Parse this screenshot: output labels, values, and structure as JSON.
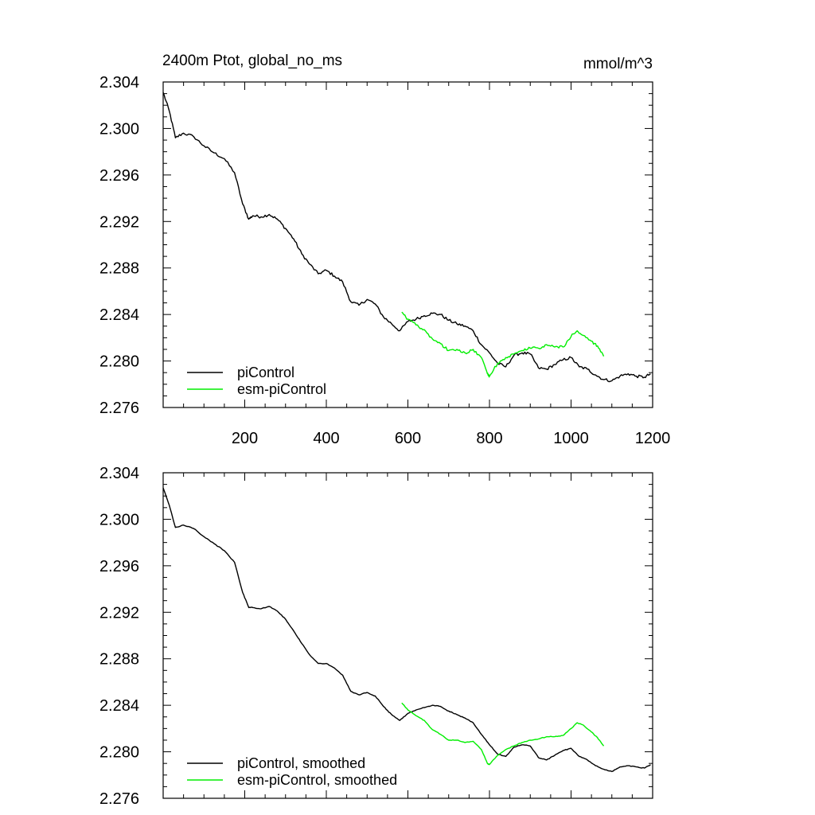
{
  "figure": {
    "title_left": "2400m Ptot, global_no_ms",
    "units": "mmol/m^3"
  },
  "colors": {
    "piControl": "#000000",
    "esm_piControl": "#00ee00"
  },
  "chart_data": [
    {
      "type": "line",
      "title": "2400m Ptot, global_no_ms",
      "units": "mmol/m^3",
      "xlabel": "",
      "ylabel": "",
      "xlim": [
        0,
        1200
      ],
      "ylim": [
        2.276,
        2.304
      ],
      "xticks": [
        200,
        400,
        600,
        800,
        1000,
        1200
      ],
      "xticklabels": [
        "200",
        "400",
        "600",
        "800",
        "1000",
        "1200"
      ],
      "yticks": [
        2.276,
        2.28,
        2.284,
        2.288,
        2.292,
        2.296,
        2.3,
        2.304
      ],
      "yticklabels": [
        "2.276",
        "2.280",
        "2.284",
        "2.288",
        "2.292",
        "2.296",
        "2.300",
        "2.304"
      ],
      "legend_position": "bottom-left",
      "series": [
        {
          "name": "piControl",
          "color": "#000000",
          "x": [
            0,
            15,
            30,
            50,
            75,
            100,
            125,
            150,
            175,
            195,
            210,
            220,
            240,
            260,
            280,
            300,
            320,
            340,
            360,
            380,
            400,
            420,
            440,
            460,
            480,
            500,
            520,
            540,
            560,
            580,
            600,
            620,
            640,
            660,
            680,
            700,
            720,
            740,
            760,
            780,
            800,
            820,
            840,
            860,
            880,
            900,
            920,
            940,
            960,
            980,
            1000,
            1020,
            1040,
            1060,
            1080,
            1100,
            1120,
            1140,
            1160,
            1180,
            1195
          ],
          "y": [
            2.3031,
            2.3015,
            2.2992,
            2.2996,
            2.2993,
            2.2985,
            2.2979,
            2.2974,
            2.2962,
            2.2935,
            2.2922,
            2.2925,
            2.2924,
            2.2926,
            2.2922,
            2.2914,
            2.2905,
            2.2892,
            2.2883,
            2.2875,
            2.2878,
            2.2873,
            2.2868,
            2.2851,
            2.2848,
            2.2853,
            2.2849,
            2.2838,
            2.2832,
            2.2826,
            2.2834,
            2.2836,
            2.2839,
            2.2841,
            2.284,
            2.2835,
            2.2832,
            2.283,
            2.2826,
            2.2814,
            2.2807,
            2.2798,
            2.2795,
            2.2805,
            2.2807,
            2.2806,
            2.2794,
            2.2793,
            2.2797,
            2.2801,
            2.2803,
            2.2795,
            2.2793,
            2.2788,
            2.2784,
            2.2783,
            2.2787,
            2.2789,
            2.2787,
            2.2786,
            2.2789
          ]
        },
        {
          "name": "esm-piControl",
          "color": "#00ee00",
          "x": [
            585,
            600,
            620,
            640,
            660,
            680,
            700,
            720,
            740,
            760,
            780,
            795,
            800,
            820,
            840,
            860,
            880,
            900,
            920,
            940,
            960,
            980,
            1000,
            1015,
            1030,
            1050,
            1065,
            1080
          ],
          "y": [
            2.2842,
            2.2836,
            2.2831,
            2.2827,
            2.2819,
            2.2815,
            2.2809,
            2.281,
            2.2807,
            2.281,
            2.2803,
            2.2789,
            2.2787,
            2.2798,
            2.2803,
            2.2806,
            2.2809,
            2.2811,
            2.2811,
            2.2814,
            2.2812,
            2.2812,
            2.2821,
            2.2826,
            2.2822,
            2.2817,
            2.2813,
            2.2804
          ]
        }
      ]
    },
    {
      "type": "line",
      "title": "",
      "xlabel": "",
      "ylabel": "",
      "xlim": [
        0,
        1200
      ],
      "ylim": [
        2.276,
        2.304
      ],
      "xticks": [
        200,
        400,
        600,
        800,
        1000,
        1200
      ],
      "xticklabels": [],
      "yticks": [
        2.276,
        2.28,
        2.284,
        2.288,
        2.292,
        2.296,
        2.3,
        2.304
      ],
      "yticklabels": [
        "2.276",
        "2.280",
        "2.284",
        "2.288",
        "2.292",
        "2.296",
        "2.300",
        "2.304"
      ],
      "legend_position": "bottom-left",
      "series": [
        {
          "name": "piControl, smoothed",
          "color": "#000000",
          "x": [
            0,
            15,
            30,
            50,
            75,
            100,
            125,
            150,
            175,
            195,
            210,
            220,
            240,
            260,
            280,
            300,
            320,
            340,
            360,
            380,
            400,
            420,
            440,
            460,
            480,
            500,
            520,
            540,
            560,
            580,
            600,
            620,
            640,
            660,
            680,
            700,
            720,
            740,
            760,
            780,
            800,
            820,
            840,
            860,
            880,
            900,
            920,
            940,
            960,
            980,
            1000,
            1020,
            1040,
            1060,
            1080,
            1100,
            1120,
            1140,
            1160,
            1180,
            1195
          ],
          "y": [
            2.3027,
            2.3012,
            2.2993,
            2.2995,
            2.2992,
            2.2985,
            2.2979,
            2.2973,
            2.2963,
            2.2937,
            2.2924,
            2.2924,
            2.2923,
            2.2925,
            2.2921,
            2.2914,
            2.2904,
            2.2893,
            2.2883,
            2.2876,
            2.2876,
            2.2872,
            2.2866,
            2.2852,
            2.2849,
            2.2851,
            2.2848,
            2.2839,
            2.2832,
            2.2827,
            2.2833,
            2.2836,
            2.2838,
            2.284,
            2.2839,
            2.2835,
            2.2832,
            2.2829,
            2.2825,
            2.2815,
            2.2806,
            2.2798,
            2.2796,
            2.2804,
            2.2806,
            2.2805,
            2.2795,
            2.2793,
            2.2797,
            2.2801,
            2.2803,
            2.2796,
            2.2793,
            2.2788,
            2.2785,
            2.2783,
            2.2787,
            2.2788,
            2.2787,
            2.2786,
            2.2789
          ]
        },
        {
          "name": "esm-piControl, smoothed",
          "color": "#00ee00",
          "x": [
            585,
            600,
            620,
            640,
            660,
            680,
            700,
            720,
            740,
            760,
            780,
            795,
            800,
            820,
            840,
            860,
            880,
            900,
            920,
            940,
            960,
            980,
            1000,
            1015,
            1030,
            1050,
            1065,
            1080
          ],
          "y": [
            2.2842,
            2.2836,
            2.2831,
            2.2827,
            2.2819,
            2.2815,
            2.281,
            2.281,
            2.2808,
            2.2809,
            2.2802,
            2.279,
            2.2789,
            2.2797,
            2.2802,
            2.2805,
            2.2808,
            2.281,
            2.2811,
            2.2813,
            2.2813,
            2.2814,
            2.282,
            2.2825,
            2.2823,
            2.2817,
            2.2812,
            2.2805
          ]
        }
      ]
    }
  ]
}
